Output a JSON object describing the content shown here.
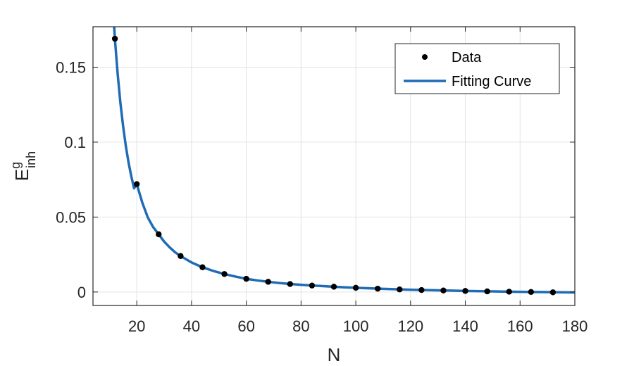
{
  "chart_data": {
    "type": "scatter",
    "xlabel": "N",
    "ylabel": {
      "base": "E",
      "superscript": "g",
      "subscript": "inh"
    },
    "xlim": [
      4,
      180
    ],
    "ylim": [
      -0.009,
      0.177
    ],
    "xticks": [
      20,
      40,
      60,
      80,
      100,
      120,
      140,
      160,
      180
    ],
    "yticks": [
      0,
      0.05,
      0.1,
      0.15
    ],
    "xtick_labels": [
      "20",
      "40",
      "60",
      "80",
      "100",
      "120",
      "140",
      "160",
      "180"
    ],
    "ytick_labels": [
      "0",
      "0.05",
      "0.1",
      "0.15"
    ],
    "grid": true,
    "legend_position": "top-right",
    "series": [
      {
        "name": "Data",
        "kind": "markers",
        "color": "#000000",
        "x": [
          12,
          20,
          28,
          36,
          44,
          52,
          60,
          68,
          76,
          84,
          92,
          100,
          108,
          116,
          124,
          132,
          140,
          148,
          156,
          164,
          172
        ],
        "y": [
          0.169,
          0.072,
          0.0385,
          0.024,
          0.0165,
          0.012,
          0.0088,
          0.0068,
          0.0053,
          0.0043,
          0.0035,
          0.0028,
          0.0022,
          0.0017,
          0.0013,
          0.001,
          0.0007,
          0.0004,
          0.0002,
          0.0,
          -0.0002
        ]
      },
      {
        "name": "Fitting Curve",
        "kind": "line",
        "color": "#1f6bb5",
        "x": [
          11,
          12,
          13,
          14,
          15,
          16,
          17,
          18,
          19,
          20,
          22,
          24,
          26,
          28,
          30,
          32,
          34,
          36,
          40,
          44,
          48,
          52,
          56,
          60,
          64,
          68,
          72,
          76,
          80,
          84,
          88,
          92,
          96,
          100,
          110,
          120,
          130,
          140,
          150,
          160,
          170,
          180
        ],
        "y": [
          0.2,
          0.169,
          0.1458,
          0.1264,
          0.1107,
          0.0973,
          0.0863,
          0.0772,
          0.0692,
          0.072,
          0.0597,
          0.0498,
          0.0432,
          0.0385,
          0.0336,
          0.0298,
          0.0265,
          0.024,
          0.0197,
          0.0165,
          0.014,
          0.012,
          0.0103,
          0.0088,
          0.0077,
          0.0068,
          0.006,
          0.0053,
          0.0048,
          0.0043,
          0.0039,
          0.0035,
          0.0031,
          0.0028,
          0.0021,
          0.0015,
          0.0011,
          0.0007,
          0.0004,
          0.0001,
          -0.0001,
          -0.0003
        ]
      }
    ]
  }
}
